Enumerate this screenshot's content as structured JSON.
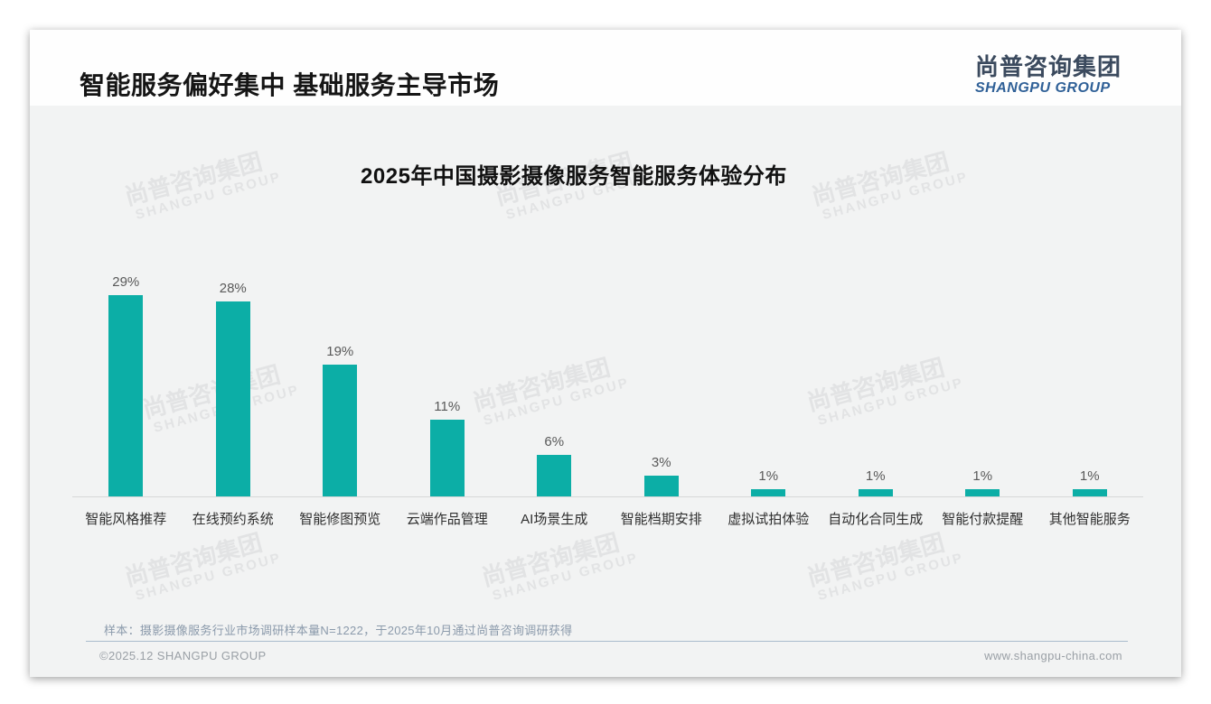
{
  "header": {
    "title": "智能服务偏好集中 基础服务主导市场",
    "logo": {
      "chinese": "尚普咨询集团",
      "english": "SHANGPU GROUP"
    }
  },
  "watermark": {
    "line1": "尚普咨询集团",
    "line2": "SHANGPU GROUP"
  },
  "chart_data": {
    "type": "bar",
    "title": "2025年中国摄影摄像服务智能服务体验分布",
    "categories": [
      "智能风格推荐",
      "在线预约系统",
      "智能修图预览",
      "云端作品管理",
      "AI场景生成",
      "智能档期安排",
      "虚拟试拍体验",
      "自动化合同生成",
      "智能付款提醒",
      "其他智能服务"
    ],
    "values": [
      29,
      28,
      19,
      11,
      6,
      3,
      1,
      1,
      1,
      1
    ],
    "labels": [
      "29%",
      "28%",
      "19%",
      "11%",
      "6%",
      "3%",
      "1%",
      "1%",
      "1%",
      "1%"
    ],
    "unit": "%",
    "xlabel": "",
    "ylabel": "",
    "ylim": [
      0,
      30
    ],
    "grid": false,
    "legend": false,
    "bar_color": "#0CAEA6"
  },
  "footnote": "样本：摄影摄像服务行业市场调研样本量N=1222，于2025年10月通过尚普咨询调研获得",
  "footer": {
    "copyright": "©2025.12 SHANGPU GROUP",
    "website": "www.shangpu-china.com"
  },
  "colors": {
    "bar_teal": "#0CAEA6",
    "logo_navy": "#3B4A5E",
    "logo_blue": "#2F6097",
    "body_background": "#F2F3F3",
    "divider_blue": "#A9BCCD"
  }
}
